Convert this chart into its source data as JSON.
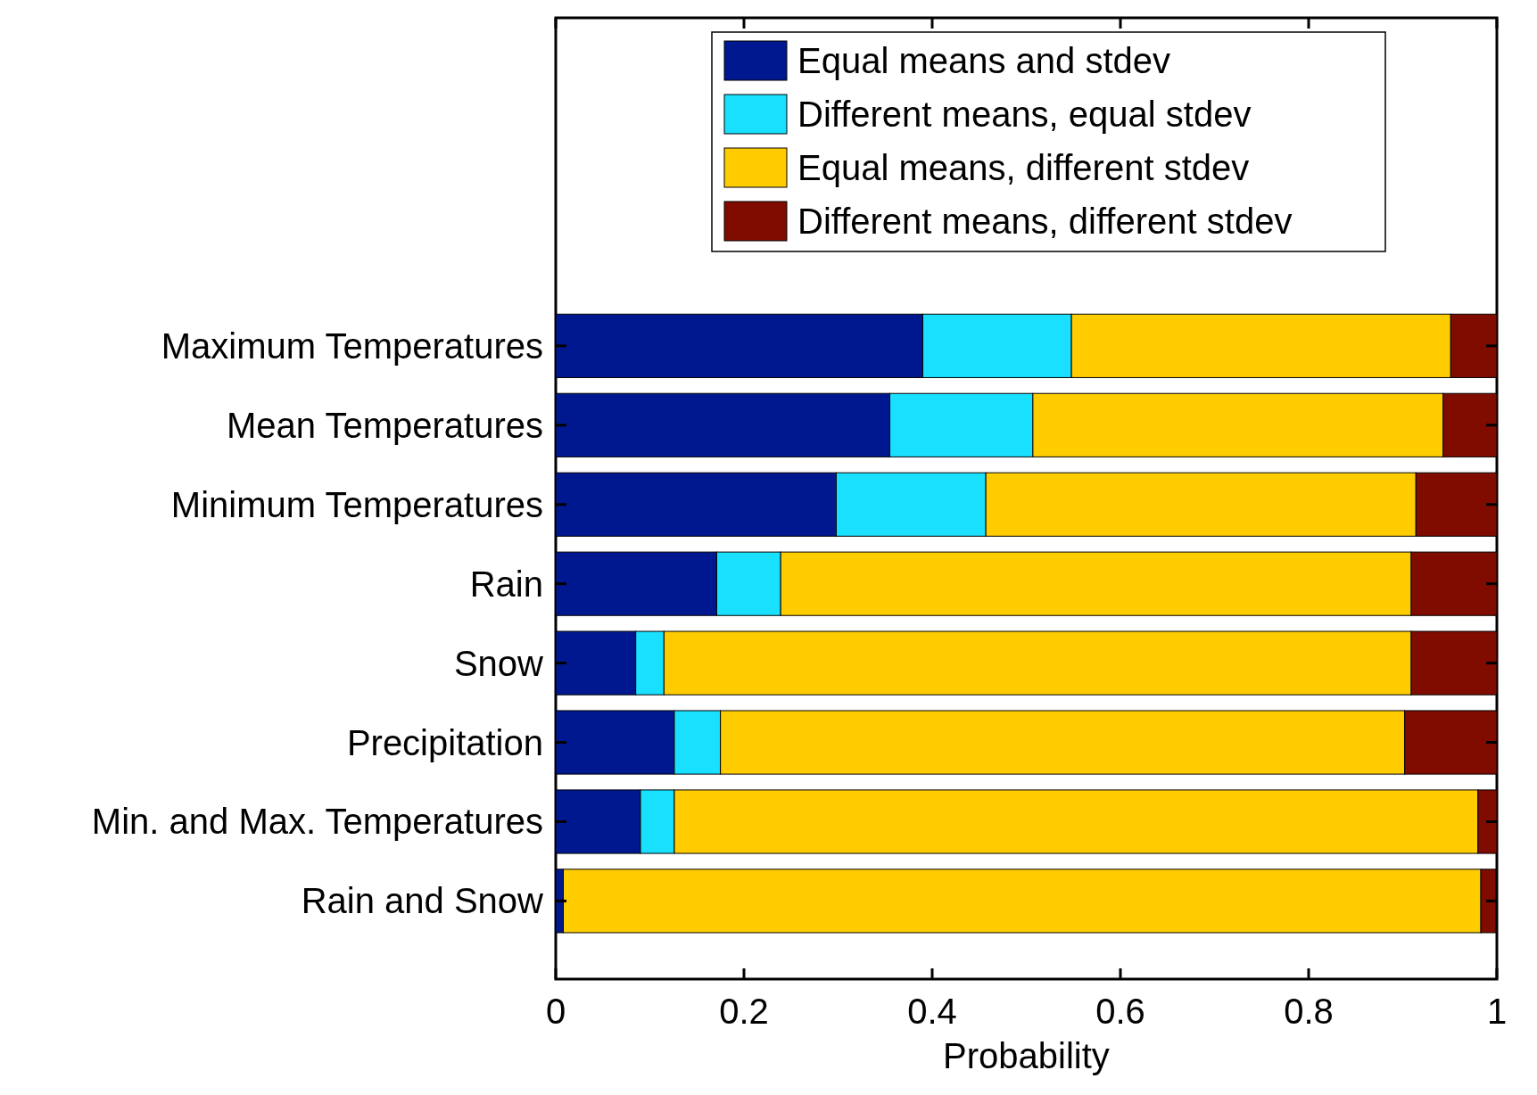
{
  "chart_data": {
    "type": "bar",
    "orientation": "horizontal",
    "stacked": true,
    "xlabel": "Probability",
    "categories": [
      "Maximum Temperatures",
      "Mean Temperatures",
      "Minimum Temperatures",
      "Rain",
      "Snow",
      "Precipitation",
      "Min. and Max. Temperatures",
      "Rain and Snow"
    ],
    "series": [
      {
        "name": "Equal means and stdev",
        "color": "#00188f",
        "values": [
          0.39,
          0.355,
          0.298,
          0.171,
          0.085,
          0.126,
          0.09,
          0.008
        ]
      },
      {
        "name": "Different means, equal stdev",
        "color": "#19e0ff",
        "values": [
          0.158,
          0.152,
          0.159,
          0.068,
          0.03,
          0.049,
          0.036,
          null
        ]
      },
      {
        "name": "Equal means, different stdev",
        "color": "#ffcc00",
        "values": [
          0.403,
          0.436,
          0.457,
          0.67,
          0.794,
          0.727,
          0.854,
          0.975
        ]
      },
      {
        "name": "Different means, different stdev",
        "color": "#800c00",
        "values": [
          0.049,
          0.057,
          0.086,
          0.091,
          0.091,
          0.098,
          0.02,
          0.016
        ]
      }
    ],
    "xlim": [
      0,
      1
    ],
    "xticks": [
      0,
      0.2,
      0.4,
      0.6,
      0.8,
      1
    ],
    "grid": false,
    "legend": "top"
  }
}
